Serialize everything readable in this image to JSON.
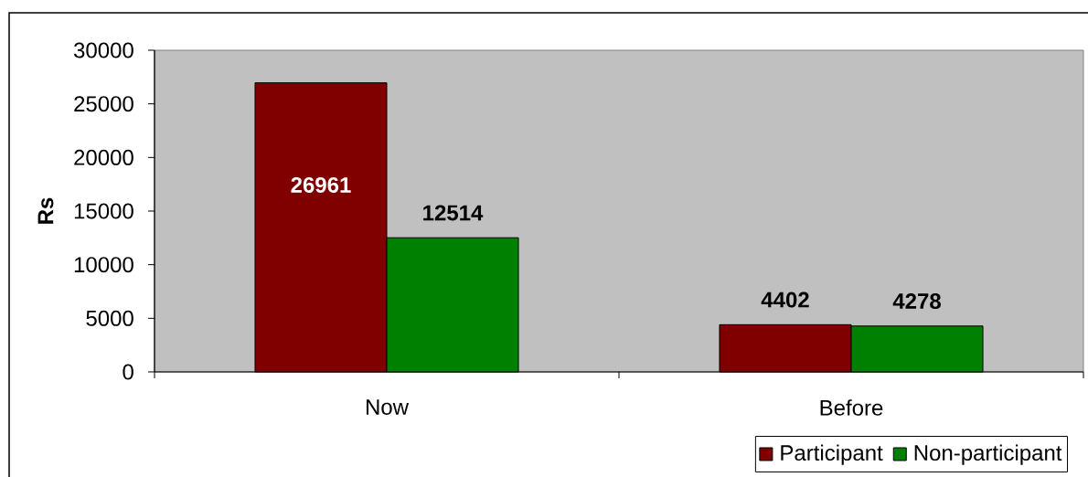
{
  "chart_data": {
    "type": "bar",
    "ylabel": "Rs",
    "categories": [
      "Now",
      "Before"
    ],
    "series": [
      {
        "name": "Participant",
        "color": "#800000",
        "values": [
          26961,
          4402
        ]
      },
      {
        "name": "Non-participant",
        "color": "#008000",
        "values": [
          12514,
          4278
        ]
      }
    ],
    "ylim": [
      0,
      30000
    ],
    "yticks": [
      0,
      5000,
      10000,
      15000,
      20000,
      25000,
      30000
    ],
    "data_labels": true,
    "legend": "bottom right"
  }
}
